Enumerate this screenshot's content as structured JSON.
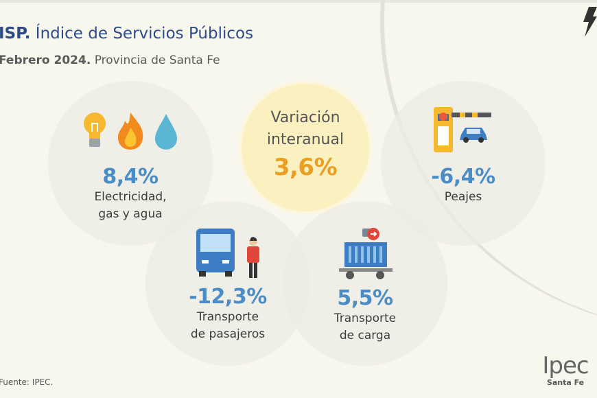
{
  "header": {
    "title_bold": "ISP.",
    "title": " Índice de Servicios Públicos",
    "subtitle_bold": "Febrero 2024.",
    "subtitle": " Provincia de Santa Fe"
  },
  "center": {
    "label_line1": "Variación",
    "label_line2": "interanual",
    "value": "3,6%"
  },
  "items": [
    {
      "value": "8,4%",
      "label_line1": "Electricidad,",
      "label_line2": "gas y agua",
      "icons": [
        "lightbulb-icon",
        "flame-icon",
        "water-drop-icon"
      ]
    },
    {
      "value": "-6,4%",
      "label_line1": "Peajes",
      "icons": [
        "toll-barrier-icon",
        "car-icon"
      ]
    },
    {
      "value": "-12,3%",
      "label_line1": "Transporte",
      "label_line2": "de pasajeros",
      "icons": [
        "bus-icon",
        "person-icon"
      ]
    },
    {
      "value": "5,5%",
      "label_line1": "Transporte",
      "label_line2": "de carga",
      "icons": [
        "cargo-container-icon"
      ]
    }
  ],
  "footer": {
    "source": "Fuente: IPEC.",
    "logo_main": "Ipec",
    "logo_sub": "Santa Fe"
  },
  "colors": {
    "title": "#2d4b86",
    "value": "#4a8dc6",
    "center_value": "#e9a022",
    "center_bg": "#fbf0c0"
  }
}
